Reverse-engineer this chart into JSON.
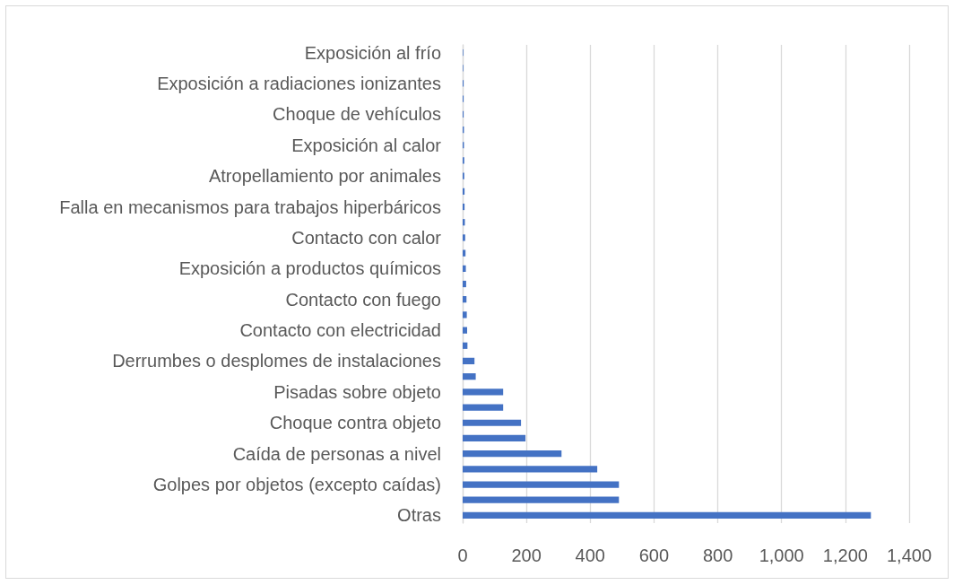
{
  "chart_data": {
    "type": "bar",
    "orientation": "horizontal",
    "categories": [
      "Exposición al frío",
      null,
      "Exposición a radiaciones ionizantes",
      null,
      "Choque de vehículos",
      null,
      "Exposición al calor",
      null,
      "Atropellamiento por animales",
      null,
      "Falla en mecanismos para trabajos hiperbáricos",
      null,
      "Contacto con calor",
      null,
      "Exposición a productos químicos",
      null,
      "Contacto con fuego",
      null,
      "Contacto con electricidad",
      null,
      "Derrumbes o desplomes de instalaciones",
      null,
      "Pisadas sobre objeto",
      null,
      "Choque contra objeto",
      null,
      "Caída de personas a nivel",
      null,
      "Golpes por objetos (excepto caídas)",
      null,
      "Otras"
    ],
    "values": [
      2,
      2,
      3,
      3,
      3,
      4,
      4,
      5,
      5,
      6,
      6,
      7,
      8,
      9,
      10,
      11,
      12,
      13,
      14,
      15,
      37,
      41,
      127,
      127,
      183,
      197,
      310,
      422,
      490,
      490,
      1280
    ],
    "color": "#4472c4",
    "xlim": [
      0,
      1400
    ],
    "xticks": [
      0,
      200,
      400,
      600,
      800,
      {
        "value": 1000,
        "label": "1,000"
      },
      {
        "value": 1200,
        "label": "1,200"
      },
      {
        "value": 1400,
        "label": "1,400"
      }
    ],
    "grid": "x"
  }
}
